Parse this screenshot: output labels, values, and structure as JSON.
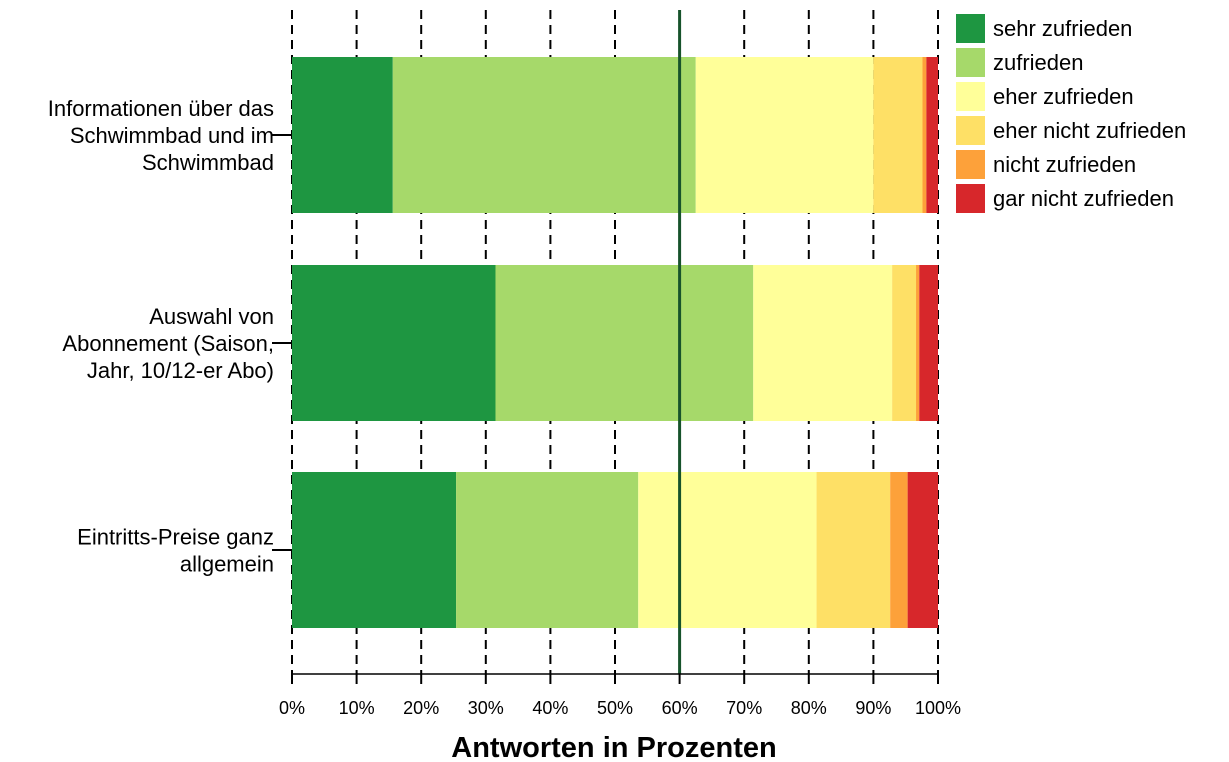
{
  "chart_data": {
    "type": "bar",
    "orientation": "horizontal",
    "stacked": true,
    "xlabel": "Antworten in Prozenten",
    "xlim": [
      0,
      100
    ],
    "x_ticks": [
      "0%",
      "10%",
      "20%",
      "30%",
      "40%",
      "50%",
      "60%",
      "70%",
      "80%",
      "90%",
      "100%"
    ],
    "grid": "vertical dashed",
    "reference_line": 60,
    "legend_position": "top-right",
    "categories": [
      [
        "Informationen über das",
        "Schwimmbad und im",
        "Schwimmbad"
      ],
      [
        "Auswahl von",
        "Abonnement (Saison,",
        "Jahr, 10/12-er Abo)"
      ],
      [
        "Eintritts-Preise ganz",
        "allgemein"
      ]
    ],
    "series": [
      {
        "name": "sehr zufrieden",
        "color": "#1e9641",
        "values": [
          15.6,
          31.5,
          25.4
        ]
      },
      {
        "name": "zufrieden",
        "color": "#a6d96a",
        "values": [
          46.9,
          39.9,
          28.2
        ]
      },
      {
        "name": "eher zufrieden",
        "color": "#ffff99",
        "values": [
          27.5,
          21.5,
          27.6
        ]
      },
      {
        "name": "eher nicht zufrieden",
        "color": "#fee066",
        "values": [
          7.6,
          3.7,
          11.4
        ]
      },
      {
        "name": "nicht zufrieden",
        "color": "#fda13a",
        "values": [
          0.6,
          0.5,
          2.7
        ]
      },
      {
        "name": "gar nicht zufrieden",
        "color": "#d7272b",
        "values": [
          1.8,
          2.9,
          4.7
        ]
      }
    ]
  }
}
